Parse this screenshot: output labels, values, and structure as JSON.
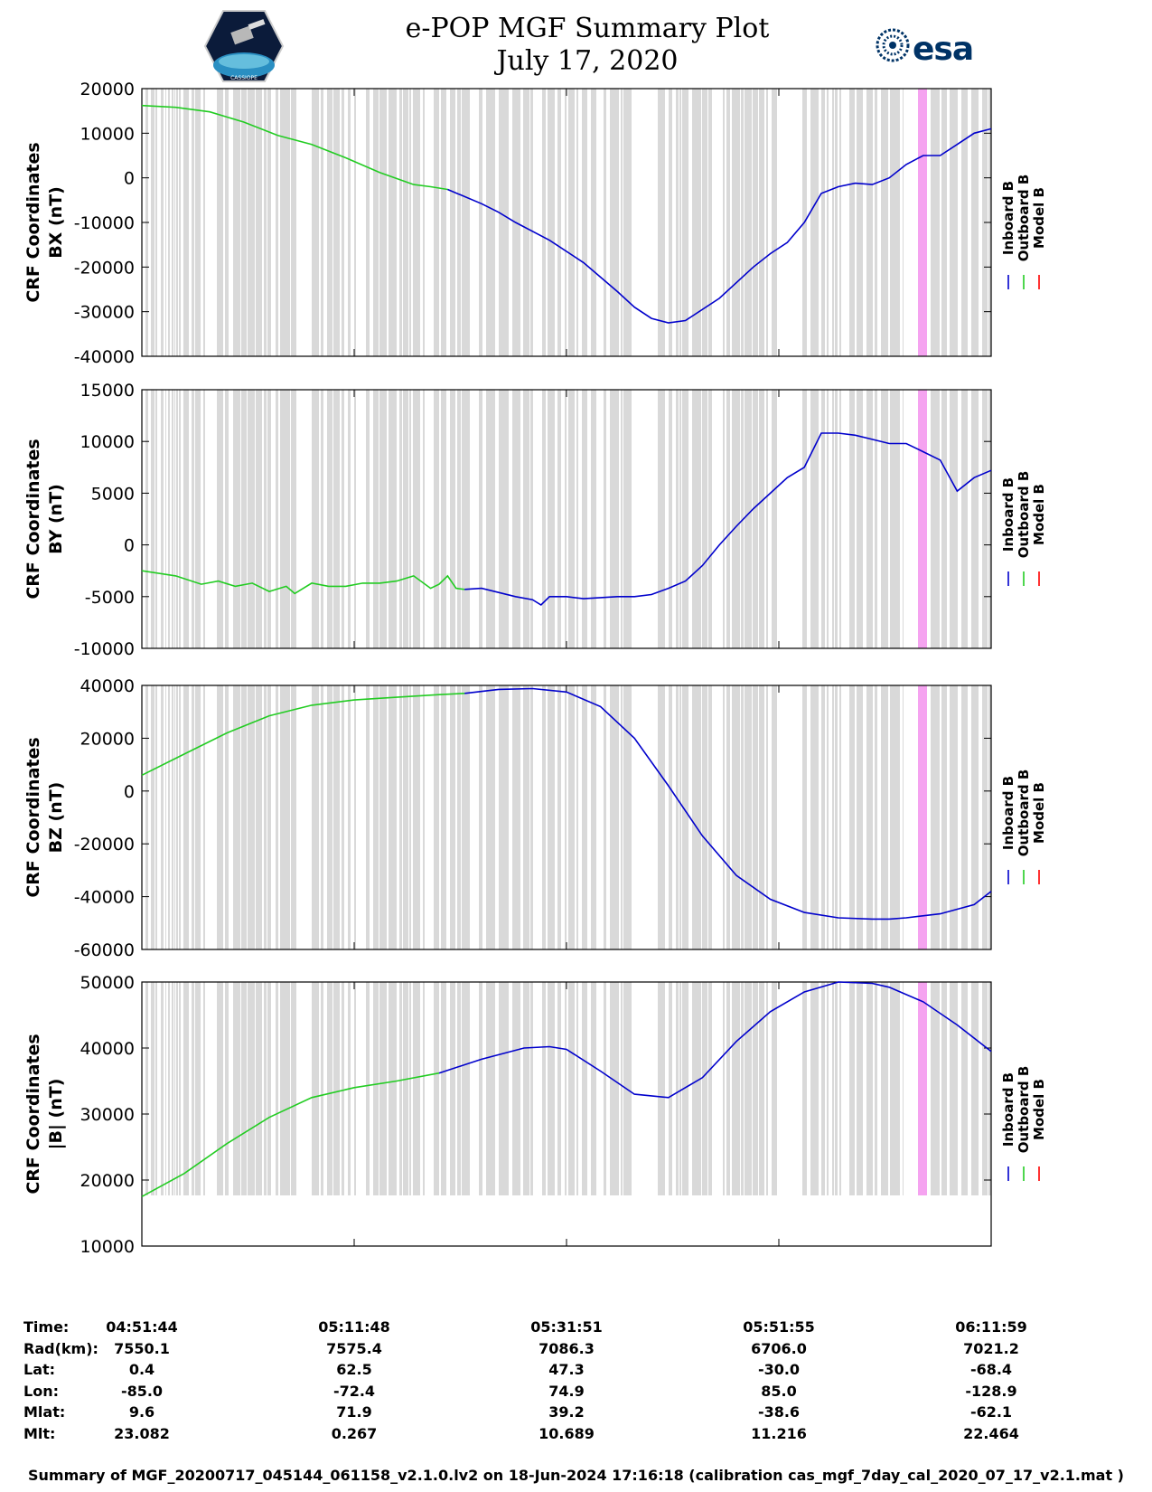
{
  "header": {
    "title_line1": "e-POP MGF Summary Plot",
    "title_line2": "July 17, 2020",
    "esa_logo_text": "esa",
    "cassiope_logo_text": "CASSIOPE"
  },
  "colors": {
    "inboard": "#0000cc",
    "outboard": "#22cc22",
    "model": "#ff0000",
    "gap_shading": "#d9d9d9",
    "highlight": "#f5a3f0"
  },
  "legend": {
    "labels": [
      "Inboard B",
      "Outboard B",
      "Model B"
    ]
  },
  "x_axis": {
    "ticks": [
      "04:51:44",
      "05:11:48",
      "05:31:51",
      "05:51:55",
      "06:11:59"
    ],
    "range_minutes": [
      0,
      80.25
    ]
  },
  "chart_data": [
    {
      "type": "line",
      "ylabel_line1": "CRF Coordinates",
      "ylabel_line2": "BX (nT)",
      "ylim": [
        -40000,
        20000
      ],
      "yticks": [
        "20000",
        "10000",
        "0",
        "-10000",
        "-20000",
        "-30000",
        "-40000"
      ],
      "ytick_values": [
        20000,
        10000,
        0,
        -10000,
        -20000,
        -30000,
        -40000
      ],
      "series": [
        {
          "name": "Outboard B",
          "x": [
            0,
            4,
            8,
            12,
            16,
            20,
            24,
            28,
            32,
            34,
            36
          ],
          "values": [
            16200,
            15800,
            14800,
            12500,
            9500,
            7500,
            4500,
            1200,
            -1500,
            -2000,
            -2600
          ]
        },
        {
          "name": "Inboard B",
          "x": [
            36,
            40,
            42,
            44,
            48,
            52,
            56,
            58,
            60,
            62,
            64,
            68,
            72,
            74,
            76,
            78,
            80,
            82,
            84,
            86,
            88,
            90,
            92,
            94,
            96,
            98,
            100
          ],
          "values": [
            -2600,
            -5800,
            -7700,
            -10000,
            -14000,
            -19000,
            -25500,
            -29000,
            -31500,
            -32500,
            -32000,
            -27000,
            -20000,
            -17000,
            -14500,
            -10000,
            -3500,
            -2000,
            -1200,
            -1500,
            0,
            3000,
            5000,
            5000,
            7500,
            10000,
            11000
          ]
        }
      ]
    },
    {
      "type": "line",
      "ylabel_line1": "CRF Coordinates",
      "ylabel_line2": "BY (nT)",
      "ylim": [
        -10000,
        15000
      ],
      "yticks": [
        "15000",
        "10000",
        "5000",
        "0",
        "-5000",
        "-10000"
      ],
      "ytick_values": [
        15000,
        10000,
        5000,
        0,
        -5000,
        -10000
      ],
      "series": [
        {
          "name": "Outboard B",
          "x": [
            0,
            4,
            7,
            9,
            11,
            13,
            15,
            17,
            18,
            20,
            22,
            24,
            26,
            28,
            30,
            32,
            34,
            35,
            36,
            37,
            38
          ],
          "values": [
            -2500,
            -3000,
            -3800,
            -3500,
            -4000,
            -3700,
            -4500,
            -4000,
            -4700,
            -3700,
            -4000,
            -4000,
            -3700,
            -3700,
            -3500,
            -3000,
            -4200,
            -3800,
            -3000,
            -4200,
            -4300
          ]
        },
        {
          "name": "Inboard B",
          "x": [
            38,
            40,
            44,
            46,
            47,
            48,
            50,
            52,
            54,
            56,
            58,
            60,
            62,
            64,
            66,
            68,
            70,
            72,
            76,
            78,
            80,
            82,
            84,
            86,
            88,
            90,
            92,
            94,
            96,
            98,
            100
          ],
          "values": [
            -4300,
            -4200,
            -5000,
            -5300,
            -5800,
            -5000,
            -5000,
            -5200,
            -5100,
            -5000,
            -5000,
            -4800,
            -4200,
            -3500,
            -2000,
            0,
            1800,
            3500,
            6500,
            7500,
            10800,
            10800,
            10600,
            10200,
            9800,
            9800,
            9000,
            8200,
            5200,
            6500,
            7200
          ]
        }
      ]
    },
    {
      "type": "line",
      "ylabel_line1": "CRF Coordinates",
      "ylabel_line2": "BZ (nT)",
      "ylim": [
        -60000,
        40000
      ],
      "yticks": [
        "40000",
        "20000",
        "0",
        "-20000",
        "-40000",
        "-60000"
      ],
      "ytick_values": [
        40000,
        20000,
        0,
        -20000,
        -40000,
        -60000
      ],
      "series": [
        {
          "name": "Outboard B",
          "x": [
            0,
            5,
            10,
            15,
            20,
            25,
            30,
            35,
            38
          ],
          "values": [
            6000,
            14000,
            22000,
            28500,
            32500,
            34500,
            35500,
            36500,
            37000
          ]
        },
        {
          "name": "Inboard B",
          "x": [
            38,
            42,
            46,
            50,
            54,
            58,
            62,
            66,
            70,
            74,
            78,
            82,
            86,
            88,
            90,
            94,
            98,
            100
          ],
          "values": [
            37000,
            38500,
            38800,
            37500,
            32000,
            20000,
            2000,
            -17000,
            -32000,
            -41000,
            -46000,
            -48000,
            -48500,
            -48500,
            -48000,
            -46500,
            -43000,
            -38000
          ]
        }
      ]
    },
    {
      "type": "line",
      "ylabel_line1": "CRF Coordinates",
      "ylabel_line2": "|B| (nT)",
      "ylim": [
        10000,
        50000
      ],
      "yticks": [
        "50000",
        "40000",
        "30000",
        "20000",
        "10000"
      ],
      "ytick_values": [
        50000,
        40000,
        30000,
        20000,
        10000
      ],
      "series": [
        {
          "name": "Outboard B",
          "x": [
            0,
            5,
            10,
            15,
            20,
            25,
            30,
            35
          ],
          "values": [
            17500,
            21000,
            25500,
            29500,
            32500,
            34000,
            35000,
            36200
          ]
        },
        {
          "name": "Inboard B",
          "x": [
            35,
            40,
            45,
            48,
            50,
            54,
            58,
            62,
            66,
            70,
            74,
            78,
            82,
            86,
            88,
            92,
            96,
            100
          ],
          "values": [
            36200,
            38300,
            40000,
            40200,
            39800,
            36500,
            33000,
            32500,
            35500,
            41000,
            45500,
            48500,
            50000,
            49800,
            49200,
            47000,
            43500,
            39500
          ]
        }
      ]
    }
  ],
  "info_table": {
    "rows": [
      {
        "label": "Time:",
        "values": [
          "04:51:44",
          "05:11:48",
          "05:31:51",
          "05:51:55",
          "06:11:59"
        ]
      },
      {
        "label": "Rad(km):",
        "values": [
          "7550.1",
          "7575.4",
          "7086.3",
          "6706.0",
          "7021.2"
        ]
      },
      {
        "label": "Lat:",
        "values": [
          "0.4",
          "62.5",
          "47.3",
          "-30.0",
          "-68.4"
        ]
      },
      {
        "label": "Lon:",
        "values": [
          "-85.0",
          "-72.4",
          "74.9",
          "85.0",
          "-128.9"
        ]
      },
      {
        "label": "Mlat:",
        "values": [
          "9.6",
          "71.9",
          "39.2",
          "-38.6",
          "-62.1"
        ]
      },
      {
        "label": "Mlt:",
        "values": [
          "23.082",
          "0.267",
          "10.689",
          "11.216",
          "22.464"
        ]
      }
    ]
  },
  "footer": {
    "text": "Summary of MGF_20200717_045144_061158_v2.1.0.lv2 on 18-Jun-2024 17:16:18 (calibration cas_mgf_7day_cal_2020_07_17_v2.1.mat )"
  }
}
